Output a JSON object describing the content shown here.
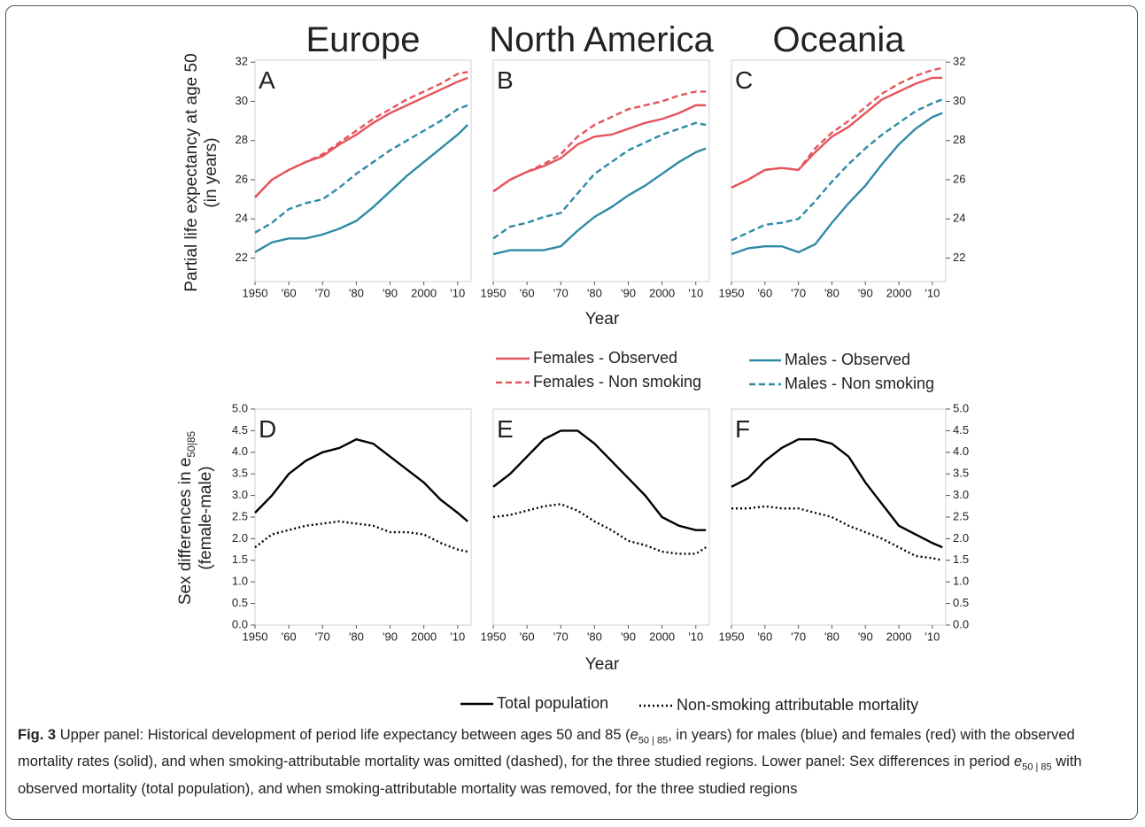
{
  "caption": {
    "label": "Fig. 3",
    "parts": [
      "Upper panel: Historical development of period life expectancy between ages 50 and 85 (",
      "e",
      "50 | 85",
      ", in years) for males (blue) and females (red) with the observed mortality rates (solid), and when smoking-attributable mortality was omitted (dashed), for the three studied regions. Lower panel: Sex differences in period ",
      "e",
      "50 | 85",
      " with observed mortality (total population), and when smoking-attributable mortality was removed, for the three studied regions"
    ]
  },
  "chart_data": [
    {
      "type": "line",
      "title": "Europe",
      "label": "A",
      "y_label": [
        "Partial life expectancy at age 50",
        "(in years)"
      ],
      "y_axis": "left",
      "x": [
        1950,
        1955,
        1960,
        1965,
        1970,
        1975,
        1980,
        1985,
        1990,
        1995,
        2000,
        2005,
        2010,
        2013
      ],
      "xlim": [
        1950,
        2014
      ],
      "xticks": [
        1950,
        {
          "value": 1960,
          "label": "'60"
        },
        {
          "value": 1970,
          "label": "'70"
        },
        {
          "value": 1980,
          "label": "'80"
        },
        {
          "value": 1990,
          "label": "'90"
        },
        2000,
        {
          "value": 2010,
          "label": "'10"
        }
      ],
      "ylim": [
        20.8,
        32.1
      ],
      "yticks": [
        22,
        24,
        26,
        28,
        30,
        32
      ],
      "series": [
        {
          "name": "Females - Observed",
          "color": "#e5545c",
          "style": "solid",
          "values": [
            25.1,
            26.0,
            26.5,
            26.9,
            27.2,
            27.8,
            28.3,
            28.9,
            29.4,
            29.8,
            30.2,
            30.6,
            31.0,
            31.2
          ]
        },
        {
          "name": "Females - Non smoking",
          "color": "#e5545c",
          "style": "dashed",
          "values": [
            25.1,
            26.0,
            26.5,
            26.9,
            27.3,
            27.9,
            28.5,
            29.1,
            29.6,
            30.1,
            30.5,
            30.9,
            31.4,
            31.5
          ]
        },
        {
          "name": "Males - Observed",
          "color": "#2f8aa6",
          "style": "solid",
          "values": [
            22.3,
            22.8,
            23.0,
            23.0,
            23.2,
            23.5,
            23.9,
            24.6,
            25.4,
            26.2,
            26.9,
            27.6,
            28.3,
            28.8
          ]
        },
        {
          "name": "Males - Non smoking",
          "color": "#2f8aa6",
          "style": "dashed",
          "values": [
            23.3,
            23.8,
            24.5,
            24.8,
            25.0,
            25.6,
            26.3,
            26.9,
            27.5,
            28.0,
            28.5,
            29.0,
            29.6,
            29.8
          ]
        }
      ]
    },
    {
      "type": "line",
      "title": "North America",
      "label": "B",
      "x_label": "Year",
      "x": [
        1950,
        1955,
        1960,
        1965,
        1970,
        1975,
        1980,
        1985,
        1990,
        1995,
        2000,
        2005,
        2010,
        2013
      ],
      "xlim": [
        1950,
        2014
      ],
      "xticks": [
        1950,
        {
          "value": 1960,
          "label": "'60"
        },
        {
          "value": 1970,
          "label": "'70"
        },
        {
          "value": 1980,
          "label": "'80"
        },
        {
          "value": 1990,
          "label": "'90"
        },
        2000,
        {
          "value": 2010,
          "label": "'10"
        }
      ],
      "ylim": [
        20.8,
        32.1
      ],
      "series": [
        {
          "name": "Females - Observed",
          "color": "#e5545c",
          "style": "solid",
          "values": [
            25.4,
            26.0,
            26.4,
            26.7,
            27.1,
            27.8,
            28.2,
            28.3,
            28.6,
            28.9,
            29.1,
            29.4,
            29.8,
            29.8
          ]
        },
        {
          "name": "Females - Non smoking",
          "color": "#e5545c",
          "style": "dashed",
          "values": [
            25.4,
            26.0,
            26.4,
            26.8,
            27.3,
            28.2,
            28.8,
            29.2,
            29.6,
            29.8,
            30.0,
            30.3,
            30.5,
            30.5
          ]
        },
        {
          "name": "Males - Observed",
          "color": "#2f8aa6",
          "style": "solid",
          "values": [
            22.2,
            22.4,
            22.4,
            22.4,
            22.6,
            23.4,
            24.1,
            24.6,
            25.2,
            25.7,
            26.3,
            26.9,
            27.4,
            27.6
          ]
        },
        {
          "name": "Males - Non smoking",
          "color": "#2f8aa6",
          "style": "dashed",
          "values": [
            23.0,
            23.6,
            23.8,
            24.1,
            24.3,
            25.3,
            26.3,
            26.9,
            27.5,
            27.9,
            28.3,
            28.6,
            28.9,
            28.8
          ]
        }
      ]
    },
    {
      "type": "line",
      "title": "Oceania",
      "label": "C",
      "y_axis": "right",
      "x": [
        1950,
        1955,
        1960,
        1965,
        1970,
        1975,
        1980,
        1985,
        1990,
        1995,
        2000,
        2005,
        2010,
        2013
      ],
      "xlim": [
        1950,
        2014
      ],
      "xticks": [
        1950,
        {
          "value": 1960,
          "label": "'60"
        },
        {
          "value": 1970,
          "label": "'70"
        },
        {
          "value": 1980,
          "label": "'80"
        },
        {
          "value": 1990,
          "label": "'90"
        },
        2000,
        {
          "value": 2010,
          "label": "'10"
        }
      ],
      "ylim": [
        20.8,
        32.1
      ],
      "yticks": [
        22,
        24,
        26,
        28,
        30,
        32
      ],
      "series": [
        {
          "name": "Females - Observed",
          "color": "#e5545c",
          "style": "solid",
          "values": [
            25.6,
            26.0,
            26.5,
            26.6,
            26.5,
            27.4,
            28.2,
            28.7,
            29.4,
            30.1,
            30.5,
            30.9,
            31.2,
            31.2
          ]
        },
        {
          "name": "Females - Non smoking",
          "color": "#e5545c",
          "style": "dashed",
          "values": [
            25.6,
            26.0,
            26.5,
            26.6,
            26.5,
            27.6,
            28.4,
            29.0,
            29.7,
            30.4,
            30.9,
            31.3,
            31.6,
            31.7
          ]
        },
        {
          "name": "Males - Observed",
          "color": "#2f8aa6",
          "style": "solid",
          "values": [
            22.2,
            22.5,
            22.6,
            22.6,
            22.3,
            22.7,
            23.8,
            24.8,
            25.7,
            26.8,
            27.8,
            28.6,
            29.2,
            29.4
          ]
        },
        {
          "name": "Males - Non smoking",
          "color": "#2f8aa6",
          "style": "dashed",
          "values": [
            22.9,
            23.3,
            23.7,
            23.8,
            24.0,
            24.9,
            25.9,
            26.8,
            27.6,
            28.3,
            28.9,
            29.5,
            29.9,
            30.1
          ]
        }
      ]
    },
    {
      "type": "line",
      "label": "D",
      "y_label": [
        "Sex differences in e",
        "50|85",
        "(female-male)"
      ],
      "y_axis": "left",
      "x": [
        1950,
        1955,
        1960,
        1965,
        1970,
        1975,
        1980,
        1985,
        1990,
        1995,
        2000,
        2005,
        2010,
        2013
      ],
      "xlim": [
        1950,
        2014
      ],
      "xticks": [
        1950,
        {
          "value": 1960,
          "label": "'60"
        },
        {
          "value": 1970,
          "label": "'70"
        },
        {
          "value": 1980,
          "label": "'80"
        },
        {
          "value": 1990,
          "label": "'90"
        },
        2000,
        {
          "value": 2010,
          "label": "'10"
        }
      ],
      "ylim": [
        0,
        5
      ],
      "yticks": [
        {
          "value": 0,
          "label": "0.0"
        },
        0.5,
        {
          "value": 1,
          "label": "1.0"
        },
        1.5,
        {
          "value": 2,
          "label": "2.0"
        },
        2.5,
        {
          "value": 3,
          "label": "3.0"
        },
        3.5,
        {
          "value": 4,
          "label": "4.0"
        },
        4.5,
        {
          "value": 5,
          "label": "5.0"
        }
      ],
      "series": [
        {
          "name": "Total population",
          "color": "#000000",
          "style": "solid",
          "values": [
            2.6,
            3.0,
            3.5,
            3.8,
            4.0,
            4.1,
            4.3,
            4.2,
            3.9,
            3.6,
            3.3,
            2.9,
            2.6,
            2.4
          ]
        },
        {
          "name": "Non-smoking attributable mortality",
          "color": "#000000",
          "style": "dotted",
          "values": [
            1.8,
            2.1,
            2.2,
            2.3,
            2.35,
            2.4,
            2.35,
            2.3,
            2.15,
            2.15,
            2.1,
            1.9,
            1.75,
            1.7
          ]
        }
      ]
    },
    {
      "type": "line",
      "label": "E",
      "x_label": "Year",
      "x": [
        1950,
        1955,
        1960,
        1965,
        1970,
        1975,
        1980,
        1985,
        1990,
        1995,
        2000,
        2005,
        2010,
        2013
      ],
      "xlim": [
        1950,
        2014
      ],
      "xticks": [
        1950,
        {
          "value": 1960,
          "label": "'60"
        },
        {
          "value": 1970,
          "label": "'70"
        },
        {
          "value": 1980,
          "label": "'80"
        },
        {
          "value": 1990,
          "label": "'90"
        },
        2000,
        {
          "value": 2010,
          "label": "'10"
        }
      ],
      "ylim": [
        0,
        5
      ],
      "series": [
        {
          "name": "Total population",
          "color": "#000000",
          "style": "solid",
          "values": [
            3.2,
            3.5,
            3.9,
            4.3,
            4.5,
            4.5,
            4.2,
            3.8,
            3.4,
            3.0,
            2.5,
            2.3,
            2.2,
            2.2
          ]
        },
        {
          "name": "Non-smoking attributable mortality",
          "color": "#000000",
          "style": "dotted",
          "values": [
            2.5,
            2.55,
            2.65,
            2.75,
            2.8,
            2.65,
            2.4,
            2.2,
            1.95,
            1.85,
            1.7,
            1.65,
            1.65,
            1.8
          ]
        }
      ]
    },
    {
      "type": "line",
      "label": "F",
      "y_axis": "right",
      "x": [
        1950,
        1955,
        1960,
        1965,
        1970,
        1975,
        1980,
        1985,
        1990,
        1995,
        2000,
        2005,
        2010,
        2013
      ],
      "xlim": [
        1950,
        2014
      ],
      "xticks": [
        1950,
        {
          "value": 1960,
          "label": "'60"
        },
        {
          "value": 1970,
          "label": "'70"
        },
        {
          "value": 1980,
          "label": "'80"
        },
        {
          "value": 1990,
          "label": "'90"
        },
        2000,
        {
          "value": 2010,
          "label": "'10"
        }
      ],
      "ylim": [
        0,
        5
      ],
      "yticks": [
        {
          "value": 0,
          "label": "0.0"
        },
        0.5,
        {
          "value": 1,
          "label": "1.0"
        },
        1.5,
        {
          "value": 2,
          "label": "2.0"
        },
        2.5,
        {
          "value": 3,
          "label": "3.0"
        },
        3.5,
        {
          "value": 4,
          "label": "4.0"
        },
        4.5,
        {
          "value": 5,
          "label": "5.0"
        }
      ],
      "series": [
        {
          "name": "Total population",
          "color": "#000000",
          "style": "solid",
          "values": [
            3.2,
            3.4,
            3.8,
            4.1,
            4.3,
            4.3,
            4.2,
            3.9,
            3.3,
            2.8,
            2.3,
            2.1,
            1.9,
            1.8
          ]
        },
        {
          "name": "Non-smoking attributable mortality",
          "color": "#000000",
          "style": "dotted",
          "values": [
            2.7,
            2.7,
            2.75,
            2.7,
            2.7,
            2.6,
            2.5,
            2.3,
            2.15,
            2.0,
            1.8,
            1.6,
            1.55,
            1.5
          ]
        }
      ]
    }
  ]
}
